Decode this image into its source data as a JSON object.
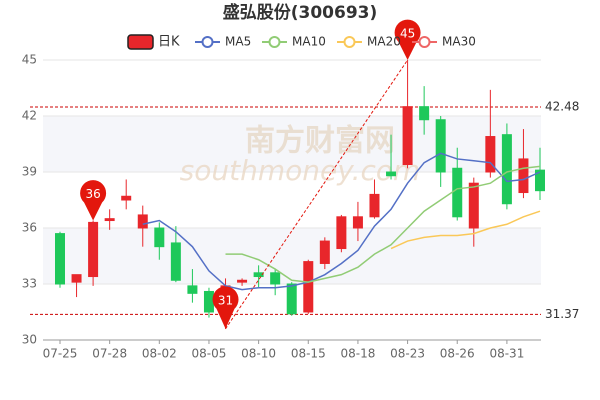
{
  "chart_data": {
    "type": "candlestick",
    "title": "盛弘股份(300693)",
    "candle_name": "日K",
    "up_color": "#e8262b",
    "down_color": "#1ec85a",
    "watermark": "南方财富网",
    "watermark_sub": "southmoney.com",
    "categories": [
      "07-25",
      null,
      null,
      "07-28",
      null,
      null,
      "08-02",
      null,
      null,
      "08-05",
      null,
      null,
      "08-10",
      null,
      null,
      "08-15",
      null,
      null,
      "08-18",
      null,
      null,
      "08-23",
      null,
      null,
      "08-26",
      null,
      null,
      "08-31",
      null,
      null
    ],
    "open": [
      35.7,
      33.1,
      33.4,
      36.4,
      37.5,
      36.0,
      36.0,
      35.2,
      32.9,
      32.6,
      32.1,
      33.1,
      33.6,
      33.6,
      33.0,
      31.5,
      34.1,
      34.9,
      36.0,
      36.6,
      39.0,
      39.4,
      42.5,
      41.8,
      39.2,
      36.0,
      39.0,
      41.0,
      37.9,
      39.1
    ],
    "close": [
      33.0,
      33.5,
      36.3,
      36.5,
      37.7,
      36.7,
      35.0,
      33.2,
      32.5,
      31.5,
      32.9,
      33.2,
      33.4,
      33.0,
      31.4,
      34.2,
      35.3,
      36.6,
      36.6,
      37.8,
      38.8,
      42.5,
      41.8,
      39.0,
      36.6,
      38.4,
      40.9,
      37.3,
      39.7,
      38.0
    ],
    "high": [
      35.8,
      33.5,
      36.4,
      37.0,
      38.6,
      37.2,
      36.3,
      36.1,
      33.8,
      32.8,
      33.3,
      33.3,
      34.0,
      33.8,
      33.1,
      34.3,
      35.5,
      36.7,
      37.4,
      38.6,
      41.0,
      45.0,
      43.6,
      42.0,
      40.3,
      38.7,
      43.4,
      41.6,
      41.3,
      40.3
    ],
    "low": [
      32.8,
      32.3,
      32.9,
      35.9,
      37.0,
      35.0,
      34.3,
      33.1,
      32.0,
      31.2,
      30.6,
      32.9,
      32.8,
      32.4,
      31.3,
      31.4,
      33.8,
      34.7,
      35.3,
      36.5,
      38.6,
      39.2,
      41.0,
      38.2,
      36.4,
      35.0,
      38.7,
      37.0,
      37.6,
      37.5
    ],
    "series": [
      {
        "name": "MA5",
        "color": "#5470c6",
        "values": [
          null,
          null,
          null,
          null,
          null,
          36.2,
          36.4,
          35.8,
          35.0,
          33.7,
          32.9,
          32.7,
          32.8,
          32.8,
          32.9,
          33.1,
          33.5,
          34.1,
          34.8,
          36.1,
          37.0,
          38.4,
          39.5,
          40.0,
          39.7,
          39.6,
          39.5,
          38.5,
          38.6,
          39.0
        ]
      },
      {
        "name": "MA10",
        "color": "#91cc75",
        "values": [
          null,
          null,
          null,
          null,
          null,
          null,
          null,
          null,
          null,
          null,
          34.6,
          34.6,
          34.3,
          33.8,
          33.2,
          33.1,
          33.3,
          33.5,
          33.9,
          34.6,
          35.1,
          36.0,
          36.9,
          37.5,
          38.1,
          38.2,
          38.4,
          39.0,
          39.2,
          39.3
        ]
      },
      {
        "name": "MA20",
        "color": "#fac858",
        "values": [
          null,
          null,
          null,
          null,
          null,
          null,
          null,
          null,
          null,
          null,
          null,
          null,
          null,
          null,
          null,
          null,
          null,
          null,
          null,
          null,
          34.9,
          35.3,
          35.5,
          35.6,
          35.6,
          35.7,
          36.0,
          36.2,
          36.6,
          36.9
        ]
      },
      {
        "name": "MA30",
        "color": "#ee6666",
        "values": [
          null,
          null,
          null,
          null,
          null,
          null,
          null,
          null,
          null,
          null,
          null,
          null,
          null,
          null,
          null,
          null,
          null,
          null,
          null,
          null,
          null,
          null,
          null,
          null,
          null,
          null,
          null,
          null,
          null,
          null
        ]
      }
    ],
    "markers": [
      {
        "value": 36.4,
        "label": "36"
      },
      {
        "value": 45.0,
        "label": "45"
      },
      {
        "value": 30.6,
        "label": "31"
      }
    ],
    "reference_lines": [
      42.48,
      31.37
    ],
    "ylim": [
      30,
      45
    ],
    "yticks": [
      30,
      33,
      36,
      39,
      42,
      45
    ],
    "grid": true
  }
}
